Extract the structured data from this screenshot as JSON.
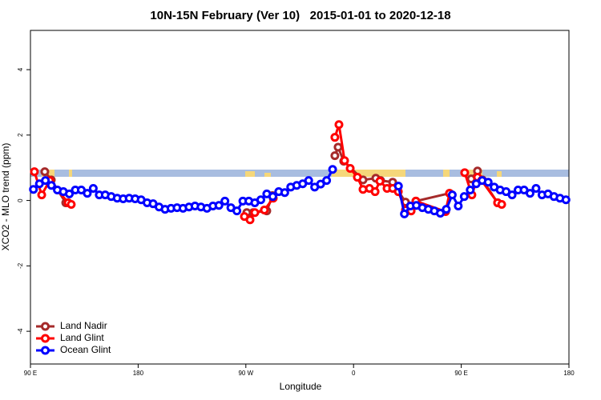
{
  "chart_data": {
    "type": "line",
    "title": "10N-15N February (Ver 10)   2015-01-01 to 2020-12-18",
    "x_label": "Longitude",
    "y_label": "XCO2 - MLO trend (ppm)",
    "xlim": [
      90,
      540
    ],
    "ylim": [
      -5.0,
      5.2
    ],
    "xticks": [
      {
        "value": 90,
        "label": "90 E"
      },
      {
        "value": 180,
        "label": "180"
      },
      {
        "value": 270,
        "label": "90 W"
      },
      {
        "value": 360,
        "label": "0"
      },
      {
        "value": 450,
        "label": "90 E"
      },
      {
        "value": 540,
        "label": "180"
      }
    ],
    "yticks": [
      -4,
      -2,
      0,
      2,
      4
    ],
    "legend": "bottom-left",
    "series": [
      {
        "name": "Land Nadir",
        "color": "#a52a2a",
        "x": [
          102,
          107.4,
          119.5,
          200,
          270.8,
          276.1,
          287.5,
          292.2,
          320,
          344.4,
          347.1,
          351.8,
          367.9,
          378.6,
          382.6,
          392.7,
          403.4,
          408.1,
          412.1,
          440.2,
          450,
          458.3,
          463.6,
          467.7,
          480.4
        ],
        "values": [
          0.88,
          0.63,
          -0.07,
          null,
          -0.37,
          -0.37,
          -0.32,
          0.15,
          null,
          1.37,
          1.63,
          1.2,
          0.63,
          0.68,
          0.61,
          0.56,
          -0.05,
          -0.32,
          -0.02,
          0.22,
          null,
          0.66,
          0.9,
          0.63,
          -0.07
        ]
      },
      {
        "name": "Land Glint",
        "color": "#ff0000",
        "x": [
          93.3,
          99.4,
          106.1,
          121.5,
          124.1,
          200,
          268.8,
          273.5,
          277.5,
          285.5,
          292.9,
          320,
          344.4,
          347.8,
          352.5,
          357.2,
          363.2,
          367.9,
          373.3,
          378,
          382,
          388,
          392.7,
          397.4,
          403.4,
          408.1,
          412.1,
          436.9,
          440.2,
          447,
          452.9,
          458.9,
          463.6,
          467,
          480.4,
          483.8
        ],
        "values": [
          0.88,
          0.17,
          0.61,
          -0.07,
          -0.12,
          null,
          -0.49,
          -0.59,
          -0.37,
          -0.29,
          0.07,
          null,
          1.93,
          2.32,
          1.22,
          0.98,
          0.71,
          0.34,
          0.37,
          0.27,
          0.59,
          0.37,
          0.37,
          0.27,
          -0.29,
          -0.32,
          -0.02,
          -0.34,
          0.22,
          null,
          0.85,
          0.17,
          0.71,
          0.61,
          -0.07,
          -0.12
        ]
      },
      {
        "name": "Ocean Glint",
        "color": "#0000ff",
        "x": [
          92.5,
          97.5,
          102.5,
          107.5,
          112.5,
          117.5,
          122.5,
          127.5,
          132.5,
          137.5,
          142.5,
          147.5,
          152.5,
          157.5,
          162.5,
          167.5,
          172.5,
          177.5,
          182.5,
          187.5,
          192.5,
          197.5,
          202.5,
          207.5,
          212.5,
          217.5,
          222.5,
          227.5,
          232.5,
          237.5,
          242.5,
          247.5,
          252.5,
          257.5,
          262.5,
          267.5,
          272.5,
          277.5,
          282.5,
          287.5,
          292.5,
          297.5,
          302.5,
          307.5,
          312.5,
          317.5,
          322.5,
          327.5,
          332.5,
          337.5,
          342.5,
          367.5,
          397.5,
          402.5,
          407.5,
          412.5,
          417.5,
          422.5,
          427.5,
          432.5,
          437.5,
          442.5,
          447.5,
          452.5,
          457.5,
          462.5,
          467.5,
          472.5,
          477.5,
          482.5,
          487.5,
          492.5,
          497.5,
          502.5,
          507.5,
          512.5,
          517.5,
          522.5,
          527.5,
          532.5,
          537.5
        ],
        "values": [
          0.34,
          0.51,
          0.61,
          0.46,
          0.32,
          0.27,
          0.2,
          0.32,
          0.32,
          0.22,
          0.37,
          0.17,
          0.17,
          0.12,
          0.07,
          0.05,
          0.07,
          0.05,
          0.02,
          -0.07,
          -0.1,
          -0.2,
          -0.27,
          -0.24,
          -0.22,
          -0.24,
          -0.2,
          -0.17,
          -0.2,
          -0.24,
          -0.17,
          -0.15,
          -0.02,
          -0.22,
          -0.32,
          -0.02,
          -0.02,
          -0.07,
          0.02,
          0.2,
          0.12,
          0.27,
          0.24,
          0.41,
          0.46,
          0.51,
          0.61,
          0.41,
          0.5,
          0.61,
          0.95,
          null,
          0.44,
          -0.41,
          -0.17,
          -0.15,
          -0.22,
          -0.27,
          -0.32,
          -0.39,
          -0.27,
          0.17,
          -0.17,
          0.12,
          0.32,
          0.51,
          0.61,
          0.56,
          0.41,
          0.32,
          0.27,
          0.17,
          0.32,
          0.32,
          0.22,
          0.37,
          0.17,
          0.2,
          0.12,
          0.07,
          0.02
        ]
      }
    ]
  }
}
